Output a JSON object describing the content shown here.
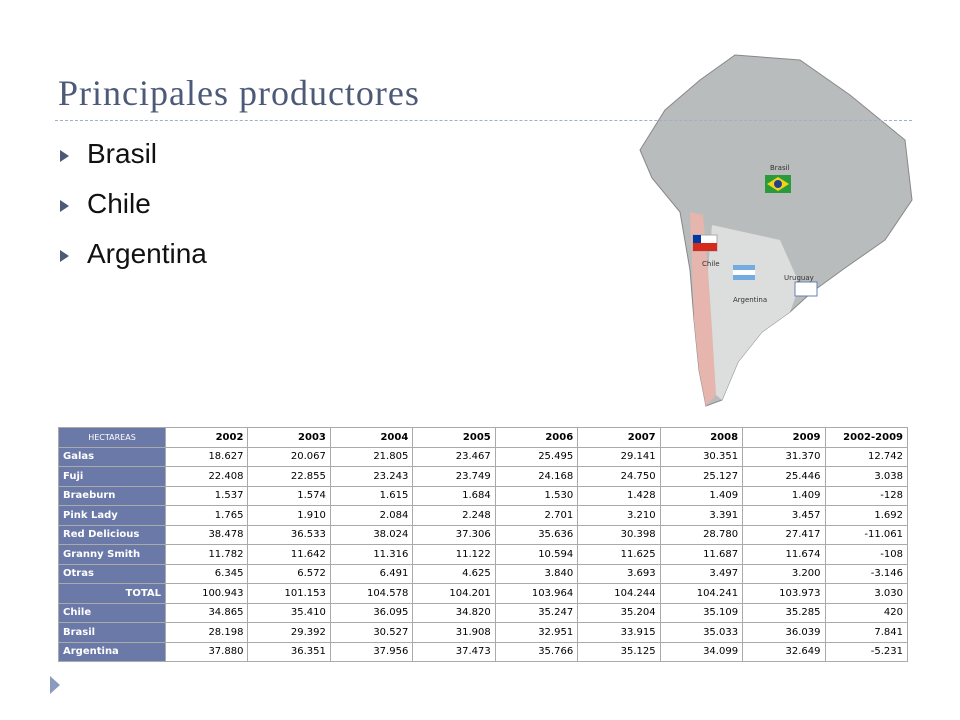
{
  "title": "Principales productores",
  "bullets": [
    "Brasil",
    "Chile",
    "Argentina"
  ],
  "map": {
    "labels": [
      "Brasil",
      "Chile",
      "Argentina",
      "Uruguay"
    ]
  },
  "table": {
    "header": [
      "HECTAREAS",
      "2002",
      "2003",
      "2004",
      "2005",
      "2006",
      "2007",
      "2008",
      "2009",
      "2002-2009"
    ],
    "rows": [
      [
        "Galas",
        "18.627",
        "20.067",
        "21.805",
        "23.467",
        "25.495",
        "29.141",
        "30.351",
        "31.370",
        "12.742"
      ],
      [
        "Fuji",
        "22.408",
        "22.855",
        "23.243",
        "23.749",
        "24.168",
        "24.750",
        "25.127",
        "25.446",
        "3.038"
      ],
      [
        "Braeburn",
        "1.537",
        "1.574",
        "1.615",
        "1.684",
        "1.530",
        "1.428",
        "1.409",
        "1.409",
        "-128"
      ],
      [
        "Pink Lady",
        "1.765",
        "1.910",
        "2.084",
        "2.248",
        "2.701",
        "3.210",
        "3.391",
        "3.457",
        "1.692"
      ],
      [
        "Red Delicious",
        "38.478",
        "36.533",
        "38.024",
        "37.306",
        "35.636",
        "30.398",
        "28.780",
        "27.417",
        "-11.061"
      ],
      [
        "Granny Smith",
        "11.782",
        "11.642",
        "11.316",
        "11.122",
        "10.594",
        "11.625",
        "11.687",
        "11.674",
        "-108"
      ],
      [
        "Otras",
        "6.345",
        "6.572",
        "6.491",
        "4.625",
        "3.840",
        "3.693",
        "3.497",
        "3.200",
        "-3.146"
      ],
      [
        "TOTAL",
        "100.943",
        "101.153",
        "104.578",
        "104.201",
        "103.964",
        "104.244",
        "104.241",
        "103.973",
        "3.030"
      ],
      [
        "Chile",
        "34.865",
        "35.410",
        "36.095",
        "34.820",
        "35.247",
        "35.204",
        "35.109",
        "35.285",
        "420"
      ],
      [
        "Brasil",
        "28.198",
        "29.392",
        "30.527",
        "31.908",
        "32.951",
        "33.915",
        "35.033",
        "36.039",
        "7.841"
      ],
      [
        "Argentina",
        "37.880",
        "36.351",
        "37.956",
        "37.473",
        "35.766",
        "35.125",
        "34.099",
        "32.649",
        "-5.231"
      ]
    ]
  }
}
